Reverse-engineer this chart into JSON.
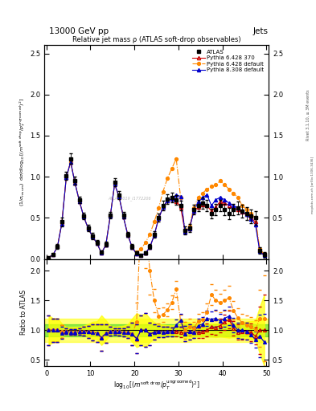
{
  "title_top": "13000 GeV pp",
  "title_top_right": "Jets",
  "plot_title": "Relative jet mass ρ (ATLAS soft-drop observables)",
  "ylabel_main": "(1/σ_{resum}) dσ/d log_{10}[(m^{soft drop}/p_T^{ungroomed})^2]",
  "ylabel_ratio": "Ratio to ATLAS",
  "right_label_1": "Rivet 3.1.10, ≥ 3M events",
  "right_label_2": "mcplots.cern.ch [arXiv:1306.3436]",
  "watermark": "ATLAS2019_I1772206",
  "x": [
    0.5,
    1.5,
    2.5,
    3.5,
    4.5,
    5.5,
    6.5,
    7.5,
    8.5,
    9.5,
    10.5,
    11.5,
    12.5,
    13.5,
    14.5,
    15.5,
    16.5,
    17.5,
    18.5,
    19.5,
    20.5,
    21.5,
    22.5,
    23.5,
    24.5,
    25.5,
    26.5,
    27.5,
    28.5,
    29.5,
    30.5,
    31.5,
    32.5,
    33.5,
    34.5,
    35.5,
    36.5,
    37.5,
    38.5,
    39.5,
    40.5,
    41.5,
    42.5,
    43.5,
    44.5,
    45.5,
    46.5,
    47.5,
    48.5,
    49.5
  ],
  "atlas_y": [
    0.02,
    0.05,
    0.15,
    0.45,
    1.01,
    1.22,
    0.95,
    0.72,
    0.52,
    0.38,
    0.28,
    0.2,
    0.08,
    0.18,
    0.53,
    0.93,
    0.78,
    0.53,
    0.3,
    0.15,
    0.07,
    0.04,
    0.07,
    0.15,
    0.3,
    0.5,
    0.65,
    0.73,
    0.75,
    0.72,
    0.65,
    0.35,
    0.38,
    0.6,
    0.65,
    0.68,
    0.65,
    0.55,
    0.6,
    0.65,
    0.6,
    0.55,
    0.6,
    0.62,
    0.58,
    0.55,
    0.52,
    0.5,
    0.1,
    0.05
  ],
  "atlas_yerr": [
    0.005,
    0.01,
    0.03,
    0.05,
    0.05,
    0.06,
    0.05,
    0.04,
    0.04,
    0.04,
    0.04,
    0.03,
    0.02,
    0.03,
    0.04,
    0.05,
    0.05,
    0.04,
    0.03,
    0.03,
    0.02,
    0.01,
    0.02,
    0.03,
    0.04,
    0.05,
    0.06,
    0.06,
    0.06,
    0.06,
    0.06,
    0.05,
    0.05,
    0.06,
    0.07,
    0.07,
    0.07,
    0.06,
    0.07,
    0.07,
    0.07,
    0.07,
    0.07,
    0.08,
    0.08,
    0.08,
    0.08,
    0.08,
    0.04,
    0.03
  ],
  "py6_370_y": [
    0.02,
    0.05,
    0.15,
    0.44,
    0.99,
    1.18,
    0.92,
    0.7,
    0.51,
    0.37,
    0.27,
    0.19,
    0.07,
    0.17,
    0.52,
    0.91,
    0.76,
    0.51,
    0.29,
    0.14,
    0.06,
    0.04,
    0.07,
    0.14,
    0.29,
    0.49,
    0.63,
    0.71,
    0.73,
    0.7,
    0.63,
    0.33,
    0.37,
    0.58,
    0.63,
    0.66,
    0.65,
    0.58,
    0.63,
    0.7,
    0.68,
    0.65,
    0.62,
    0.6,
    0.57,
    0.54,
    0.5,
    0.45,
    0.1,
    0.05
  ],
  "py6_def_y": [
    0.02,
    0.05,
    0.15,
    0.44,
    0.99,
    1.18,
    0.92,
    0.7,
    0.51,
    0.37,
    0.27,
    0.19,
    0.07,
    0.17,
    0.52,
    0.91,
    0.76,
    0.51,
    0.29,
    0.14,
    0.08,
    0.12,
    0.2,
    0.3,
    0.45,
    0.62,
    0.82,
    0.98,
    1.1,
    1.22,
    0.75,
    0.35,
    0.4,
    0.62,
    0.75,
    0.8,
    0.85,
    0.88,
    0.9,
    0.95,
    0.9,
    0.85,
    0.8,
    0.75,
    0.65,
    0.6,
    0.55,
    0.5,
    0.12,
    0.06
  ],
  "py8_def_y": [
    0.02,
    0.05,
    0.15,
    0.43,
    0.99,
    1.18,
    0.92,
    0.7,
    0.51,
    0.37,
    0.27,
    0.19,
    0.07,
    0.17,
    0.52,
    0.91,
    0.76,
    0.51,
    0.29,
    0.14,
    0.06,
    0.04,
    0.07,
    0.14,
    0.29,
    0.49,
    0.63,
    0.71,
    0.73,
    0.78,
    0.76,
    0.33,
    0.37,
    0.58,
    0.7,
    0.75,
    0.78,
    0.65,
    0.72,
    0.75,
    0.72,
    0.68,
    0.65,
    0.62,
    0.58,
    0.54,
    0.48,
    0.42,
    0.09,
    0.04
  ],
  "atlas_color": "#000000",
  "py6_370_color": "#cc0000",
  "py6_def_color": "#ff8800",
  "py8_def_color": "#0000cc",
  "xlim": [
    -0.5,
    50.5
  ],
  "xticks": [
    0,
    10,
    20,
    30,
    40,
    50
  ],
  "ylim_main": [
    0.0,
    2.6
  ],
  "yticks_main": [
    0.0,
    0.5,
    1.0,
    1.5,
    2.0,
    2.5
  ],
  "ylim_ratio": [
    0.4,
    2.2
  ],
  "yticks_ratio": [
    0.5,
    1.0,
    1.5,
    2.0
  ]
}
